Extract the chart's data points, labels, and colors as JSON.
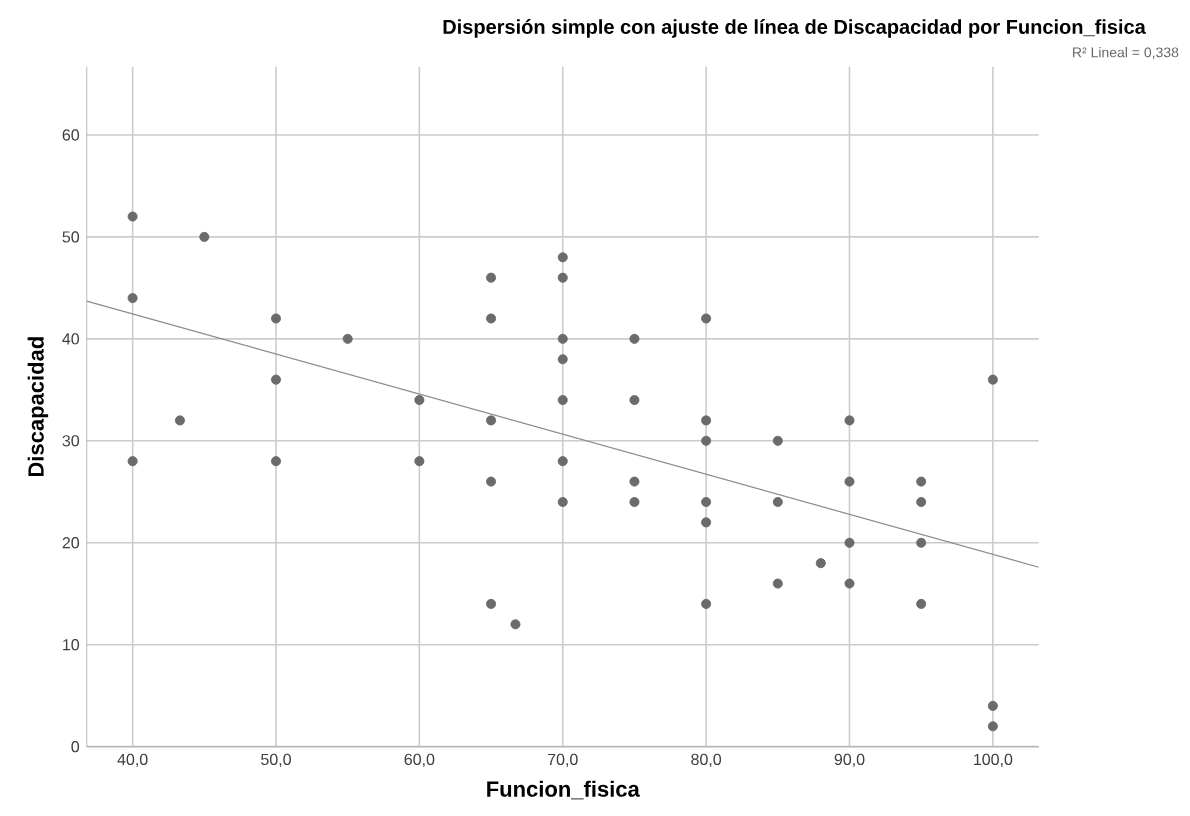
{
  "chart_data": {
    "type": "scatter",
    "title": "Dispersión simple con ajuste de línea de Discapacidad por Funcion_fisica",
    "xlabel": "Funcion_fisica",
    "ylabel": "Discapacidad",
    "annotations": [
      "R² Lineal = 0,338"
    ],
    "series": [
      {
        "color": "#6b6b6b",
        "marker": "circle",
        "x": [
          40,
          40,
          40,
          43.3,
          45,
          50,
          50,
          50,
          55,
          60,
          60,
          65,
          65,
          65,
          65,
          65,
          66.7,
          70,
          70,
          70,
          70,
          70,
          70,
          70,
          75,
          75,
          75,
          75,
          80,
          80,
          80,
          80,
          80,
          80,
          85,
          85,
          85,
          88,
          90,
          90,
          90,
          90,
          95,
          95,
          95,
          95,
          100,
          100,
          100
        ],
        "values": [
          52,
          44,
          28,
          32,
          50,
          42,
          36,
          28,
          40,
          34,
          28,
          46,
          42,
          32,
          26,
          14,
          12,
          48,
          46,
          40,
          38,
          34,
          28,
          24,
          40,
          34,
          26,
          24,
          42,
          32,
          30,
          24,
          22,
          14,
          30,
          24,
          16,
          18,
          32,
          26,
          20,
          16,
          26,
          24,
          20,
          14,
          36,
          4,
          2
        ]
      },
      {
        "type": "line",
        "color": "#8a8a8a",
        "marker": "none",
        "x": [
          36.8,
          103.2
        ],
        "values": [
          43.7,
          17.6
        ]
      }
    ],
    "xlim": [
      36.8,
      103.2
    ],
    "ylim": [
      0,
      66.7
    ],
    "xticks": [
      {
        "value": 40,
        "label": "40,0"
      },
      {
        "value": 50,
        "label": "50,0"
      },
      {
        "value": 60,
        "label": "60,0"
      },
      {
        "value": 70,
        "label": "70,0"
      },
      {
        "value": 80,
        "label": "80,0"
      },
      {
        "value": 90,
        "label": "90,0"
      },
      {
        "value": 100,
        "label": "100,0"
      }
    ],
    "yticks": [
      0,
      10,
      20,
      30,
      40,
      50,
      60
    ],
    "grid": true
  }
}
